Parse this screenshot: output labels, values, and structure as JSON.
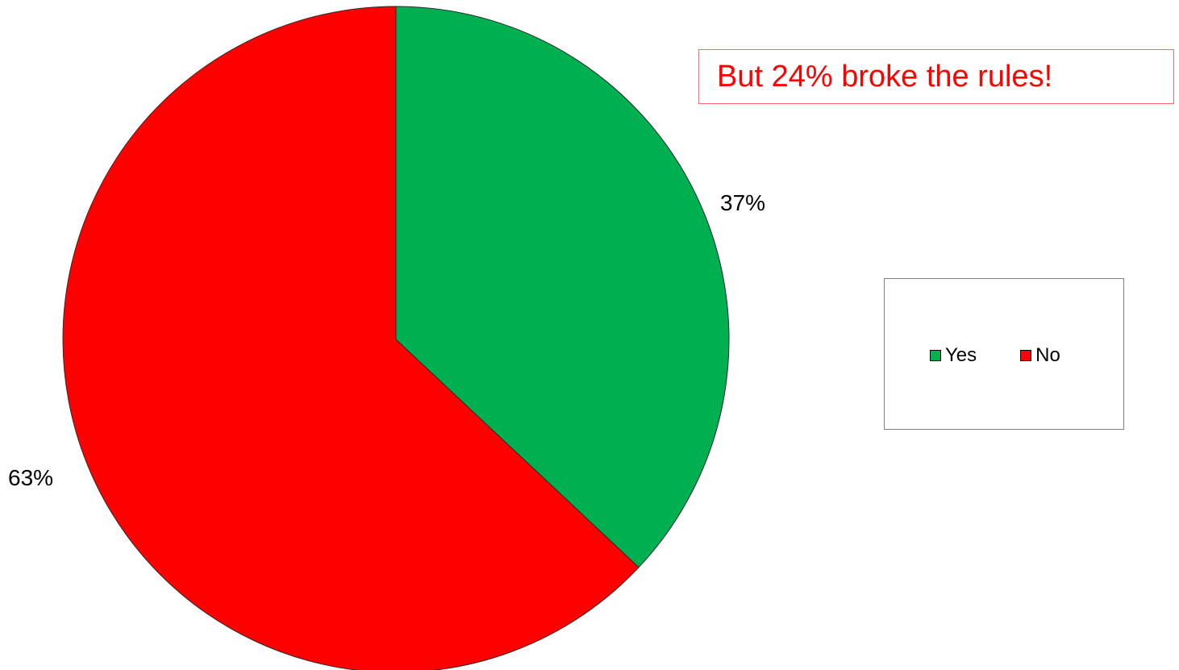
{
  "chart_data": {
    "type": "pie",
    "slices": [
      {
        "label": "Yes",
        "value": 37,
        "display": "37%",
        "color": "#00b050"
      },
      {
        "label": "No",
        "value": 63,
        "display": "63%",
        "color": "#ff0000"
      }
    ],
    "start_angle_deg": 0,
    "direction": "clockwise",
    "legend": {
      "placement": "right",
      "entries": [
        "Yes",
        "No"
      ]
    },
    "annotation": {
      "text": "But 24% broke the rules!",
      "color": "#ff0000",
      "border_color": "#ff6b6b"
    }
  }
}
